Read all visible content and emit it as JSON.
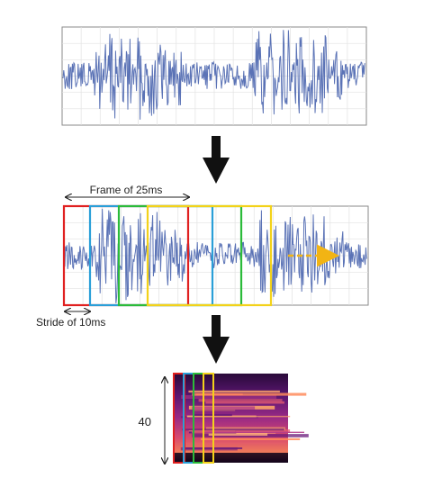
{
  "labels": {
    "frame": "Frame of 25ms",
    "stride": "Stride of 10ms",
    "feature_count": "40"
  },
  "colors": {
    "waveform": "#5b73b6",
    "grid": "#dcdcdc",
    "panel_border": "#8a8a8a",
    "arrow": "#111111",
    "frame_red": "#e02020",
    "frame_blue": "#2a9fd8",
    "frame_green": "#2bbb3a",
    "frame_yellow": "#f3d21a",
    "motion_arrow": "#f2b414"
  }
}
